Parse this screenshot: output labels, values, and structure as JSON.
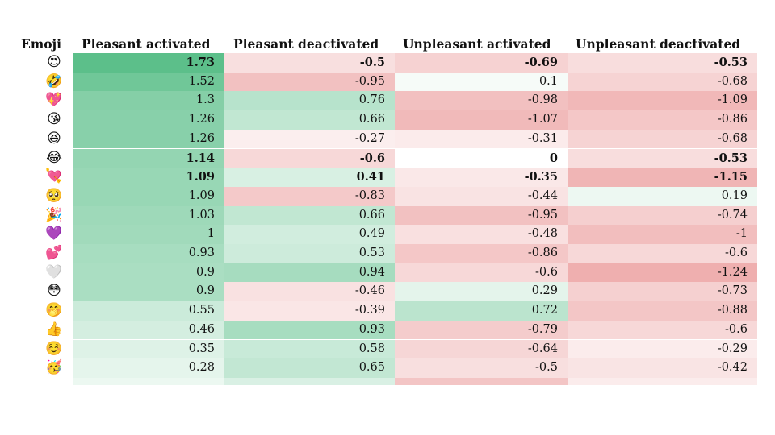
{
  "chart_data": {
    "type": "heatmap",
    "columns": [
      "Emoji",
      "Pleasant activated",
      "Pleasant deactivated",
      "Unpleasant activated",
      "Unpleasant deactivated"
    ],
    "rows": [
      {
        "emoji": "😍",
        "values": [
          1.73,
          -0.5,
          -0.69,
          -0.53
        ],
        "bold": true
      },
      {
        "emoji": "🤣",
        "values": [
          1.52,
          -0.95,
          0.1,
          -0.68
        ],
        "bold": false
      },
      {
        "emoji": "💖",
        "values": [
          1.3,
          0.76,
          -0.98,
          -1.09
        ],
        "bold": false
      },
      {
        "emoji": "😘",
        "values": [
          1.26,
          0.66,
          -1.07,
          -0.86
        ],
        "bold": false
      },
      {
        "emoji": "😆",
        "values": [
          1.26,
          -0.27,
          -0.31,
          -0.68
        ],
        "bold": false
      },
      {
        "emoji": "😂",
        "values": [
          1.14,
          -0.6,
          0,
          -0.53
        ],
        "bold": true
      },
      {
        "emoji": "💘",
        "values": [
          1.09,
          0.41,
          -0.35,
          -1.15
        ],
        "bold": true
      },
      {
        "emoji": "🥺",
        "values": [
          1.09,
          -0.83,
          -0.44,
          0.19
        ],
        "bold": false
      },
      {
        "emoji": "🎉",
        "values": [
          1.03,
          0.66,
          -0.95,
          -0.74
        ],
        "bold": false
      },
      {
        "emoji": "💜",
        "values": [
          1,
          0.49,
          -0.48,
          -1
        ],
        "bold": false
      },
      {
        "emoji": "💕",
        "values": [
          0.93,
          0.53,
          -0.86,
          -0.6
        ],
        "bold": false
      },
      {
        "emoji": "🤍",
        "values": [
          0.9,
          0.94,
          -0.6,
          -1.24
        ],
        "bold": false
      },
      {
        "emoji": "😳",
        "values": [
          0.9,
          -0.46,
          0.29,
          -0.73
        ],
        "bold": false
      },
      {
        "emoji": "🤭",
        "values": [
          0.55,
          -0.39,
          0.72,
          -0.88
        ],
        "bold": false
      },
      {
        "emoji": "👍",
        "values": [
          0.46,
          0.93,
          -0.79,
          -0.6
        ],
        "bold": false
      },
      {
        "emoji": "☺️",
        "values": [
          0.35,
          0.58,
          -0.64,
          -0.29
        ],
        "bold": false
      },
      {
        "emoji": "🥳",
        "values": [
          0.28,
          0.65,
          -0.5,
          -0.42
        ],
        "bold": false
      }
    ],
    "colors": {
      "positive": "#5cbf8a",
      "negative": "#e88f8f",
      "neutral": "#ffffff"
    }
  }
}
